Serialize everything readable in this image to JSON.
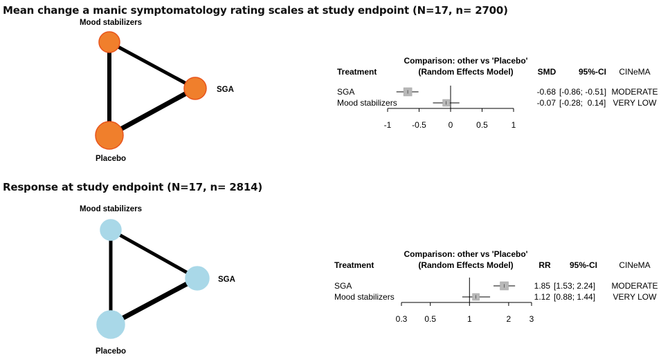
{
  "sections": [
    {
      "title": "Mean change a manic symptomatology rating scales at study endpoint (N=17, n= 2700)",
      "network": {
        "node_color": "#f07f2c",
        "node_stroke": "#e8541c",
        "nodes": [
          {
            "id": "mood",
            "label": "Mood stabilizers"
          },
          {
            "id": "sga",
            "label": "SGA"
          },
          {
            "id": "placebo",
            "label": "Placebo"
          }
        ],
        "edges": [
          {
            "from": "mood",
            "to": "placebo"
          },
          {
            "from": "mood",
            "to": "sga"
          },
          {
            "from": "sga",
            "to": "placebo"
          }
        ]
      },
      "forest": {
        "header_comparison_line1": "Comparison: other vs 'Placebo'",
        "header_comparison_line2": "(Random Effects Model)",
        "col_treatment": "Treatment",
        "col_measure": "SMD",
        "col_ci": "95%-CI",
        "col_cinema": "CINeMA",
        "scale": "linear",
        "axis_range": [
          -1,
          1
        ],
        "ticks": [
          -1,
          -0.5,
          0,
          0.5,
          1
        ],
        "tick_labels": [
          "-1",
          "-0.5",
          "0",
          "0.5",
          "1"
        ],
        "reference": 0,
        "rows": [
          {
            "treatment": "SGA",
            "estimate": -0.68,
            "lower": -0.86,
            "upper": -0.51,
            "estimate_text": "-0.68",
            "ci_text": "[-0.86; -0.51]",
            "cinema": "MODERATE"
          },
          {
            "treatment": "Mood stabilizers",
            "estimate": -0.07,
            "lower": -0.28,
            "upper": 0.14,
            "estimate_text": "-0.07",
            "ci_text": "[-0.28;  0.14]",
            "cinema": "VERY LOW"
          }
        ]
      }
    },
    {
      "title": "Response at study endpoint (N=17, n= 2814)",
      "network": {
        "node_color": "#a9d8e8",
        "node_stroke": "#a9d8e8",
        "nodes": [
          {
            "id": "mood",
            "label": "Mood stabilizers"
          },
          {
            "id": "sga",
            "label": "SGA"
          },
          {
            "id": "placebo",
            "label": "Placebo"
          }
        ],
        "edges": [
          {
            "from": "mood",
            "to": "placebo"
          },
          {
            "from": "mood",
            "to": "sga"
          },
          {
            "from": "sga",
            "to": "placebo"
          }
        ]
      },
      "forest": {
        "header_comparison_line1": "Comparison: other vs 'Placebo'",
        "header_comparison_line2": "(Random Effects Model)",
        "col_treatment": "Treatment",
        "col_measure": "RR",
        "col_ci": "95%-CI",
        "col_cinema": "CINeMA",
        "scale": "log",
        "axis_range": [
          0.3,
          3
        ],
        "ticks": [
          0.3,
          0.5,
          1,
          2,
          3
        ],
        "tick_labels": [
          "0.3",
          "0.5",
          "1",
          "2",
          "3"
        ],
        "reference": 1,
        "rows": [
          {
            "treatment": "SGA",
            "estimate": 1.85,
            "lower": 1.53,
            "upper": 2.24,
            "estimate_text": "1.85",
            "ci_text": "[1.53; 2.24]",
            "cinema": "MODERATE"
          },
          {
            "treatment": "Mood stabilizers",
            "estimate": 1.12,
            "lower": 0.88,
            "upper": 1.44,
            "estimate_text": "1.12",
            "ci_text": "[0.88; 1.44]",
            "cinema": "VERY LOW"
          }
        ]
      }
    }
  ],
  "chart_data": [
    {
      "type": "forest",
      "title": "Mean change a manic symptomatology rating scales at study endpoint (N=17, n= 2700)",
      "measure": "SMD",
      "categories": [
        "SGA",
        "Mood stabilizers"
      ],
      "values": [
        -0.68,
        -0.07
      ],
      "ci_lower": [
        -0.86,
        -0.28
      ],
      "ci_upper": [
        -0.51,
        0.14
      ],
      "xlim": [
        -1,
        1
      ],
      "reference": 0
    },
    {
      "type": "forest",
      "title": "Response at study endpoint (N=17, n= 2814)",
      "measure": "RR",
      "categories": [
        "SGA",
        "Mood stabilizers"
      ],
      "values": [
        1.85,
        1.12
      ],
      "ci_lower": [
        1.53,
        0.88
      ],
      "ci_upper": [
        2.24,
        1.44
      ],
      "xlim": [
        0.3,
        3
      ],
      "xscale": "log",
      "reference": 1
    }
  ]
}
